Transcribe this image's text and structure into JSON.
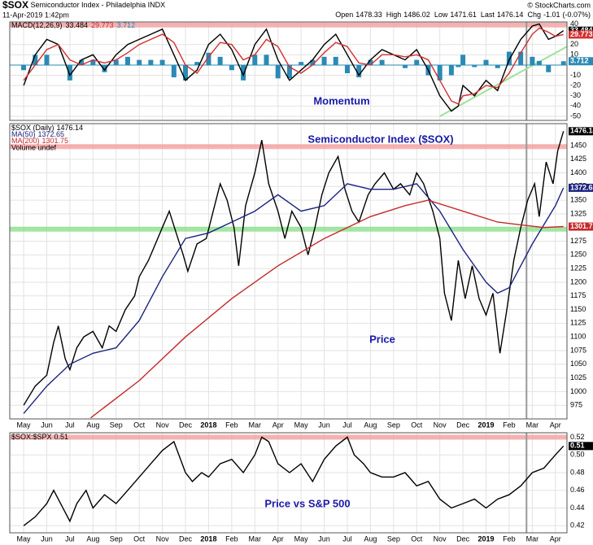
{
  "header": {
    "symbol": "$SOX",
    "name": "Semiconductor Index - Philadelphia INDX",
    "date": "11-Apr-2019 1:42pm",
    "copyright": "© StockCharts.com",
    "quote": [
      {
        "label": "Open",
        "value": 1478.33
      },
      {
        "label": "High",
        "value": 1486.02
      },
      {
        "label": "Low",
        "value": 1471.61
      },
      {
        "label": "Last",
        "value": 1476.14
      },
      {
        "label": "Chg",
        "value": -1.01
      }
    ],
    "chg_pct": "(-0.07%)"
  },
  "time_axis": {
    "xlim": [
      -0.6,
      23.5
    ],
    "xticks": [
      {
        "value": 0,
        "label": "May"
      },
      {
        "value": 1,
        "label": "Jun"
      },
      {
        "value": 2,
        "label": "Jul"
      },
      {
        "value": 3,
        "label": "Aug"
      },
      {
        "value": 4,
        "label": "Sep"
      },
      {
        "value": 5,
        "label": "Oct"
      },
      {
        "value": 6,
        "label": "Nov"
      },
      {
        "value": 7,
        "label": "Dec"
      },
      {
        "value": 8,
        "label": "2018"
      },
      {
        "value": 9,
        "label": "Feb"
      },
      {
        "value": 10,
        "label": "Mar"
      },
      {
        "value": 11,
        "label": "Apr"
      },
      {
        "value": 12,
        "label": "May"
      },
      {
        "value": 13,
        "label": "Jun"
      },
      {
        "value": 14,
        "label": "Jul"
      },
      {
        "value": 15,
        "label": "Aug"
      },
      {
        "value": 16,
        "label": "Sep"
      },
      {
        "value": 17,
        "label": "Oct"
      },
      {
        "value": 18,
        "label": "Nov"
      },
      {
        "value": 19,
        "label": "Dec"
      },
      {
        "value": 20,
        "label": "2019"
      },
      {
        "value": 21,
        "label": "Feb"
      },
      {
        "value": 22,
        "label": "Mar"
      },
      {
        "value": 23,
        "label": "Apr"
      }
    ]
  },
  "cursor_x": 21.75,
  "chart_data": [
    {
      "type": "macd",
      "indicator": "MACD(12,26,9)",
      "annotations": [
        "Momentum"
      ],
      "ylim": [
        -54,
        42
      ],
      "yticks": [
        40,
        20,
        10,
        -10,
        -20,
        -30,
        -40,
        -50
      ],
      "grid": true,
      "hlines": [
        {
          "value": 39,
          "color": "#f4a0a0"
        }
      ],
      "trendline": {
        "x": [
          18,
          23.5
        ],
        "values": [
          -50,
          18
        ],
        "color": "#9be39b"
      },
      "x": [
        0,
        0.5,
        1,
        1.5,
        2,
        2.5,
        3,
        3.5,
        4,
        4.5,
        5,
        5.5,
        6,
        6.5,
        7,
        7.5,
        8,
        8.5,
        9,
        9.5,
        10,
        10.5,
        11,
        11.5,
        12,
        12.5,
        13,
        13.5,
        14,
        14.5,
        15,
        15.5,
        16,
        16.5,
        17,
        17.5,
        18,
        18.5,
        18.8,
        19,
        19.5,
        20,
        20.5,
        21,
        21.5,
        22,
        22.3,
        22.7,
        23,
        23.35
      ],
      "series": [
        {
          "color": "#000000",
          "style": "line",
          "values": [
            -20,
            10,
            25,
            20,
            -10,
            5,
            10,
            -5,
            10,
            20,
            25,
            30,
            35,
            10,
            -15,
            -5,
            20,
            30,
            15,
            -10,
            20,
            35,
            5,
            -15,
            -5,
            5,
            20,
            30,
            10,
            -10,
            5,
            15,
            10,
            5,
            15,
            -5,
            -30,
            -45,
            -40,
            -20,
            -30,
            -15,
            -25,
            5,
            25,
            38,
            40,
            25,
            28,
            33.484
          ]
        },
        {
          "color": "#d32f2f",
          "style": "line",
          "values": [
            -15,
            0,
            15,
            20,
            5,
            0,
            5,
            2,
            5,
            12,
            20,
            25,
            30,
            22,
            0,
            -8,
            8,
            22,
            20,
            5,
            10,
            25,
            18,
            -2,
            -8,
            0,
            12,
            22,
            18,
            2,
            0,
            10,
            10,
            8,
            10,
            5,
            -15,
            -35,
            -38,
            -30,
            -28,
            -20,
            -22,
            -8,
            12,
            30,
            36,
            32,
            28,
            29.773
          ]
        },
        {
          "color": "#2a8ab5",
          "style": "histogram",
          "values": [
            -5,
            10,
            10,
            0,
            -15,
            5,
            5,
            -7,
            5,
            8,
            5,
            5,
            5,
            -12,
            -15,
            3,
            12,
            8,
            -5,
            -15,
            10,
            10,
            -13,
            -13,
            3,
            5,
            8,
            8,
            -8,
            -12,
            5,
            5,
            0,
            -3,
            5,
            -10,
            -15,
            -10,
            -2,
            10,
            -2,
            5,
            -3,
            13,
            13,
            8,
            4,
            -7,
            0,
            3.712
          ]
        }
      ]
    },
    {
      "type": "line",
      "annotations": [
        "Semiconductor Index ($SOX)",
        "Price"
      ],
      "extra_legend": "Volume undef",
      "ylim": [
        950,
        1490
      ],
      "yticks": [
        975,
        1000,
        1025,
        1050,
        1075,
        1100,
        1125,
        1150,
        1175,
        1200,
        1225,
        1250,
        1275,
        1300,
        1325,
        1350,
        1375,
        1400,
        1425,
        1450
      ],
      "grid": true,
      "show_xlabels": true,
      "hlines": [
        {
          "value": 1448,
          "color": "#f4a0a0"
        },
        {
          "value": 1297,
          "color": "#8de08d"
        }
      ],
      "series": [
        {
          "name": "$SOX (Daily)",
          "color": "#000000",
          "x": [
            0,
            0.5,
            1,
            1.3,
            1.5,
            1.8,
            2,
            2.3,
            2.6,
            3,
            3.4,
            3.7,
            4,
            4.4,
            4.8,
            5,
            5.4,
            5.8,
            6,
            6.3,
            6.6,
            6.9,
            7.1,
            7.5,
            7.9,
            8.2,
            8.5,
            8.8,
            9.1,
            9.3,
            9.6,
            10,
            10.3,
            10.6,
            11,
            11.3,
            11.6,
            12,
            12.3,
            12.6,
            12.9,
            13.2,
            13.6,
            13.9,
            14.2,
            14.5,
            14.9,
            15.2,
            15.6,
            16,
            16.3,
            16.7,
            17,
            17.3,
            17.7,
            18,
            18.2,
            18.5,
            18.8,
            19.1,
            19.4,
            19.7,
            20,
            20.3,
            20.6,
            20.9,
            21.2,
            21.5,
            21.8,
            22.1,
            22.3,
            22.6,
            22.9,
            23.1,
            23.35
          ],
          "values": [
            975,
            1010,
            1030,
            1090,
            1120,
            1060,
            1040,
            1080,
            1100,
            1110,
            1080,
            1120,
            1110,
            1150,
            1175,
            1210,
            1240,
            1280,
            1300,
            1330,
            1290,
            1250,
            1220,
            1270,
            1280,
            1330,
            1380,
            1350,
            1300,
            1230,
            1340,
            1400,
            1460,
            1380,
            1330,
            1280,
            1330,
            1300,
            1250,
            1300,
            1360,
            1400,
            1430,
            1370,
            1330,
            1310,
            1360,
            1380,
            1400,
            1370,
            1380,
            1360,
            1400,
            1380,
            1330,
            1280,
            1180,
            1130,
            1240,
            1170,
            1230,
            1170,
            1140,
            1180,
            1070,
            1150,
            1240,
            1300,
            1350,
            1380,
            1320,
            1420,
            1380,
            1440,
            1476.14
          ]
        },
        {
          "name": "MA(50)",
          "color": "#1a237e",
          "x": [
            0,
            1,
            2,
            3,
            4,
            5,
            6,
            7,
            8,
            9,
            10,
            11,
            12,
            13,
            14,
            15,
            16,
            17,
            18,
            19,
            20,
            20.5,
            21,
            22,
            23,
            23.35
          ],
          "values": [
            960,
            1010,
            1050,
            1070,
            1080,
            1130,
            1210,
            1280,
            1290,
            1310,
            1330,
            1360,
            1330,
            1340,
            1380,
            1370,
            1370,
            1380,
            1330,
            1260,
            1200,
            1180,
            1190,
            1270,
            1340,
            1372.65
          ]
        },
        {
          "name": "MA(200)",
          "color": "#c62828",
          "x": [
            2.9,
            5,
            7,
            9,
            11,
            13,
            15,
            16.5,
            17.5,
            19,
            20.5,
            21.5,
            22.5,
            23.35
          ],
          "values": [
            952,
            1020,
            1100,
            1170,
            1230,
            1280,
            1320,
            1340,
            1350,
            1330,
            1310,
            1305,
            1300,
            1301.75
          ]
        }
      ]
    },
    {
      "type": "line",
      "annotations": [
        "Price vs S&P 500"
      ],
      "ylim": [
        0.412,
        0.525
      ],
      "yticks": [
        0.52,
        {
          "value": 0.5,
          "label": "0.50"
        },
        0.48,
        0.46,
        0.44,
        0.42
      ],
      "grid": true,
      "show_xlabels": true,
      "hlines": [
        {
          "value": 0.52,
          "color": "#f4a0a0"
        }
      ],
      "series": [
        {
          "name": "$SOX:$SPX",
          "color": "#000000",
          "x": [
            0,
            0.5,
            1,
            1.3,
            1.6,
            2,
            2.3,
            2.7,
            3,
            3.5,
            4,
            4.5,
            5,
            5.5,
            6,
            6.5,
            7,
            7.3,
            7.7,
            8,
            8.5,
            9,
            9.5,
            10,
            10.3,
            10.6,
            11,
            11.5,
            12,
            12.5,
            13,
            13.5,
            14,
            14.3,
            14.7,
            15,
            15.5,
            16,
            16.5,
            17,
            17.5,
            18,
            18.5,
            19,
            19.5,
            20,
            20.5,
            21,
            21.5,
            22,
            22.5,
            23,
            23.35
          ],
          "values": [
            0.42,
            0.43,
            0.445,
            0.46,
            0.445,
            0.425,
            0.445,
            0.46,
            0.44,
            0.455,
            0.445,
            0.46,
            0.475,
            0.49,
            0.505,
            0.515,
            0.48,
            0.47,
            0.48,
            0.475,
            0.49,
            0.495,
            0.48,
            0.5,
            0.52,
            0.515,
            0.49,
            0.48,
            0.49,
            0.47,
            0.495,
            0.51,
            0.52,
            0.5,
            0.49,
            0.48,
            0.475,
            0.475,
            0.48,
            0.465,
            0.47,
            0.45,
            0.44,
            0.445,
            0.45,
            0.44,
            0.45,
            0.455,
            0.465,
            0.48,
            0.485,
            0.5,
            0.51
          ]
        }
      ]
    }
  ]
}
